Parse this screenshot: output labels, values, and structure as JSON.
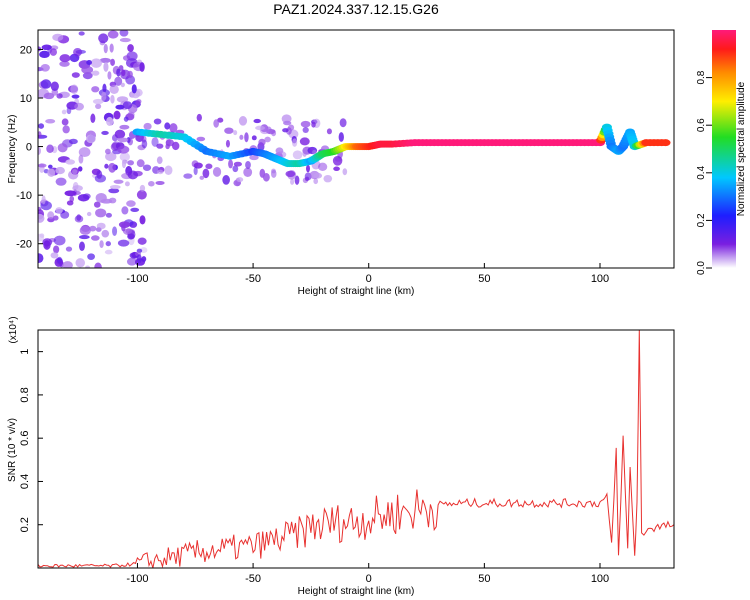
{
  "title": "PAZ1.2024.337.12.15.G26",
  "chart_data": [
    {
      "type": "heatmap",
      "xlabel": "Height of straight line (km)",
      "ylabel": "Frequency (Hz)",
      "xlim": [
        -143,
        132
      ],
      "ylim": [
        -25,
        24
      ],
      "xticks": [
        -100,
        -50,
        0,
        50,
        100
      ],
      "yticks": [
        -20,
        -10,
        0,
        10,
        20
      ],
      "colorbar": {
        "label": "Normalized spectral amplitude",
        "range": [
          0,
          1
        ],
        "ticks": [
          0.0,
          0.2,
          0.4,
          0.6,
          0.8
        ],
        "colormap": "rainbow (magenta-blue-cyan-green-yellow-red)"
      },
      "ridge": {
        "x": [
          -100,
          -90,
          -80,
          -70,
          -60,
          -50,
          -45,
          -40,
          -35,
          -30,
          -25,
          -20,
          -15,
          -10,
          -5,
          0,
          5,
          10,
          20,
          30,
          40,
          50,
          60,
          70,
          80,
          90,
          100,
          103,
          105,
          108,
          110,
          113,
          115,
          120,
          130
        ],
        "freq": [
          3,
          2.5,
          2,
          -1,
          -2,
          -1,
          -1.5,
          -2.5,
          -3.5,
          -3.5,
          -3,
          -1.5,
          -1,
          0,
          0,
          0,
          0.5,
          0.5,
          0.8,
          0.8,
          0.8,
          0.8,
          0.8,
          0.8,
          0.8,
          0.8,
          0.8,
          4,
          0,
          -1,
          0,
          3,
          0,
          0.8,
          0.8
        ],
        "amplitude": [
          0.35,
          0.45,
          0.4,
          0.3,
          0.35,
          0.25,
          0.3,
          0.35,
          0.4,
          0.45,
          0.35,
          0.5,
          0.55,
          0.7,
          0.85,
          0.9,
          0.95,
          0.95,
          1,
          1,
          1,
          1,
          1,
          1,
          1,
          1,
          1,
          0.4,
          0.3,
          0.35,
          0.3,
          0.35,
          0.4,
          0.9,
          0.9
        ]
      }
    },
    {
      "type": "line",
      "xlabel": "Height of straight line (km)",
      "ylabel": "SNR (10 * v/v)",
      "yscale_note": "(x10⁴)",
      "xlim": [
        -143,
        132
      ],
      "ylim": [
        0,
        1.1
      ],
      "xticks": [
        -100,
        -50,
        0,
        50,
        100
      ],
      "yticks": [
        0.2,
        0.4,
        0.6,
        0.8,
        1
      ],
      "series": [
        {
          "color": "#e8312f",
          "x": [
            -143,
            -130,
            -120,
            -110,
            -100,
            -90,
            -80,
            -70,
            -60,
            -50,
            -40,
            -30,
            -25,
            -20,
            -15,
            -10,
            -5,
            0,
            10,
            20,
            30,
            40,
            50,
            60,
            70,
            80,
            90,
            100,
            103,
            105,
            107,
            108,
            110,
            112,
            113,
            115,
            116,
            117,
            118,
            120,
            125,
            132
          ],
          "y": [
            0.01,
            0.01,
            0.01,
            0.01,
            0.02,
            0.04,
            0.06,
            0.08,
            0.09,
            0.1,
            0.13,
            0.16,
            0.19,
            0.2,
            0.21,
            0.21,
            0.22,
            0.23,
            0.25,
            0.27,
            0.29,
            0.3,
            0.3,
            0.3,
            0.3,
            0.3,
            0.3,
            0.3,
            0.33,
            0.1,
            0.55,
            0.05,
            0.6,
            0.08,
            0.47,
            0.05,
            0.3,
            1.1,
            0.15,
            0.18,
            0.19,
            0.2
          ]
        }
      ]
    }
  ]
}
